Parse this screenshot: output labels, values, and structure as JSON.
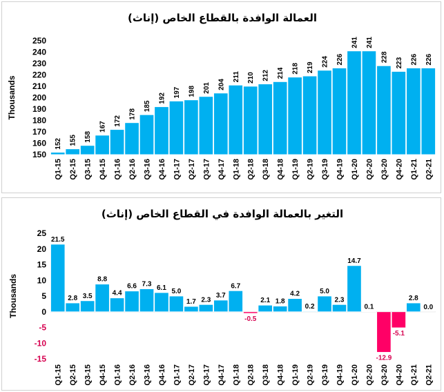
{
  "chart_data": [
    {
      "type": "bar",
      "title": "العمالة الوافدة بالقطاع الخاص (إناث)",
      "ylabel": "Thousands",
      "xlabel": "",
      "ylim": [
        150,
        250
      ],
      "yticks": [
        150,
        160,
        170,
        180,
        190,
        200,
        210,
        220,
        230,
        240,
        250
      ],
      "categories": [
        "Q1-15",
        "Q2-15",
        "Q3-15",
        "Q4-15",
        "Q1-16",
        "Q2-16",
        "Q3-16",
        "Q4-16",
        "Q1-17",
        "Q2-17",
        "Q3-17",
        "Q4-17",
        "Q1-18",
        "Q2-18",
        "Q3-18",
        "Q4-18",
        "Q1-19",
        "Q2-19",
        "Q3-19",
        "Q4-19",
        "Q1-20",
        "Q2-20",
        "Q3-20",
        "Q4-20",
        "Q1-21",
        "Q2-21"
      ],
      "values": [
        152,
        155,
        158,
        167,
        172,
        178,
        185,
        192,
        197,
        198,
        201,
        204,
        211,
        210,
        212,
        214,
        218,
        219,
        224,
        226,
        241,
        241,
        228,
        223,
        226,
        226
      ],
      "colors": {
        "bar": "#00b0f0",
        "edge": "#ffffff"
      }
    },
    {
      "type": "bar",
      "title": "التغير بالعمالة الوافدة في القطاع الخاص (إناث)",
      "ylabel": "Thousands",
      "xlabel": "",
      "ylim": [
        -15,
        25
      ],
      "yticks": [
        -15,
        -10,
        -5,
        0,
        5,
        10,
        15,
        20,
        25
      ],
      "categories": [
        "Q1-15",
        "Q2-15",
        "Q3-15",
        "Q4-15",
        "Q1-16",
        "Q2-16",
        "Q3-16",
        "Q4-16",
        "Q1-17",
        "Q2-17",
        "Q3-17",
        "Q4-17",
        "Q1-18",
        "Q2-18",
        "Q3-18",
        "Q4-18",
        "Q1-19",
        "Q2-19",
        "Q3-19",
        "Q4-19",
        "Q1-20",
        "Q2-20",
        "Q3-20",
        "Q4-20",
        "Q1-21",
        "Q2-21"
      ],
      "values": [
        21.5,
        2.8,
        3.5,
        8.8,
        4.4,
        6.6,
        7.3,
        6.1,
        5.0,
        1.7,
        2.3,
        3.7,
        6.7,
        -0.5,
        2.1,
        1.8,
        4.2,
        0.2,
        5.0,
        2.3,
        14.7,
        0.1,
        -12.9,
        -5.1,
        2.8,
        0.0
      ],
      "labels": [
        "21.5",
        "2.8",
        "3.5",
        "8.8",
        "4.4",
        "6.6",
        "7.3",
        "6.1",
        "5.0",
        "1.7",
        "2.3",
        "3.7",
        "6.7",
        "-0.5",
        "2.1",
        "1.8",
        "4.2",
        "0.2",
        "5.0",
        "2.3",
        "14.7",
        "0.1",
        "-12.9",
        "-5.1",
        "2.8",
        "0.0"
      ],
      "colors": {
        "positive": "#00b0f0",
        "negative": "#ff0066",
        "negative_label": "#d6004f"
      }
    }
  ]
}
